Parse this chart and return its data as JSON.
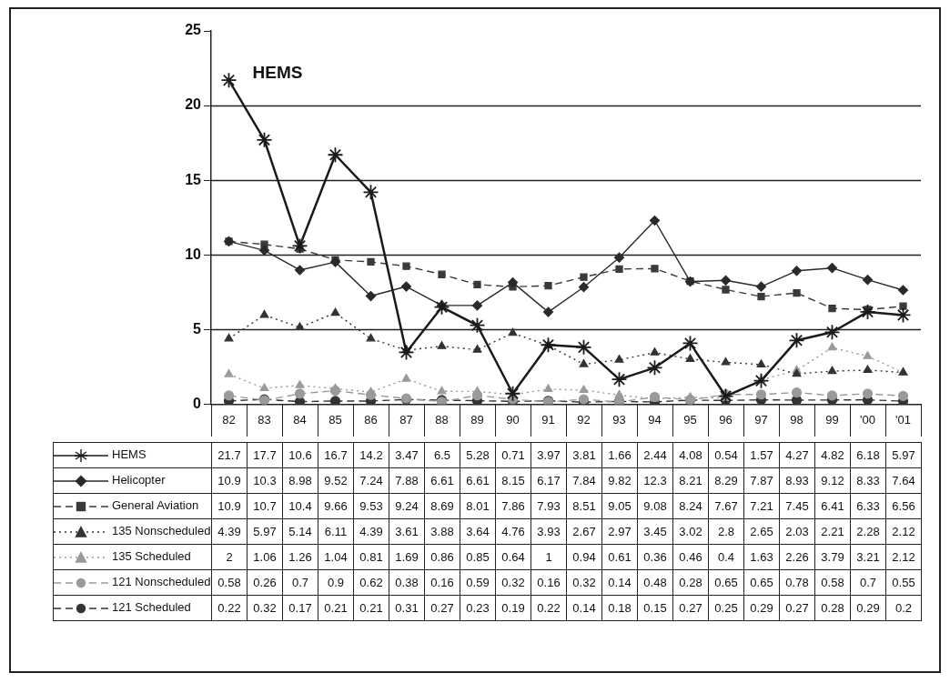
{
  "chart_data": {
    "type": "line",
    "categories": [
      "82",
      "83",
      "84",
      "85",
      "86",
      "87",
      "88",
      "89",
      "90",
      "91",
      "92",
      "93",
      "94",
      "95",
      "96",
      "97",
      "98",
      "99",
      "'00",
      "'01"
    ],
    "series": [
      {
        "name": "HEMS",
        "color": "#1a1a1a",
        "marker": "cross",
        "line_style": "solid",
        "values": [
          21.7,
          17.7,
          10.6,
          16.7,
          14.2,
          3.47,
          6.5,
          5.28,
          0.71,
          3.97,
          3.81,
          1.66,
          2.44,
          4.08,
          0.54,
          1.57,
          4.27,
          4.82,
          6.18,
          5.97
        ]
      },
      {
        "name": "Helicopter",
        "color": "#2a2a2a",
        "marker": "diamond",
        "line_style": "solid",
        "values": [
          10.9,
          10.3,
          8.98,
          9.52,
          7.24,
          7.88,
          6.61,
          6.61,
          8.15,
          6.17,
          7.84,
          9.82,
          12.3,
          8.21,
          8.29,
          7.87,
          8.93,
          9.12,
          8.33,
          7.64
        ]
      },
      {
        "name": "General Aviation",
        "color": "#3a3a3a",
        "marker": "square",
        "line_style": "dashed",
        "values": [
          10.9,
          10.7,
          10.4,
          9.66,
          9.53,
          9.24,
          8.69,
          8.01,
          7.86,
          7.93,
          8.51,
          9.05,
          9.08,
          8.24,
          7.67,
          7.21,
          7.45,
          6.41,
          6.33,
          6.56
        ]
      },
      {
        "name": "135 Nonscheduled",
        "color": "#333333",
        "marker": "triangle",
        "line_style": "dotted",
        "values": [
          4.39,
          5.97,
          5.14,
          6.11,
          4.39,
          3.61,
          3.88,
          3.64,
          4.76,
          3.93,
          2.67,
          2.97,
          3.45,
          3.02,
          2.8,
          2.65,
          2.03,
          2.21,
          2.28,
          2.12
        ]
      },
      {
        "name": "135 Scheduled",
        "color": "#9a9a9a",
        "marker": "triangle",
        "line_style": "dotted",
        "values": [
          2,
          1.06,
          1.26,
          1.04,
          0.81,
          1.69,
          0.86,
          0.85,
          0.64,
          1,
          0.94,
          0.61,
          0.36,
          0.46,
          0.4,
          1.63,
          2.26,
          3.79,
          3.21,
          2.12
        ]
      },
      {
        "name": "121 Nonscheduled",
        "color": "#9a9a9a",
        "marker": "circle",
        "line_style": "dashed",
        "values": [
          0.58,
          0.26,
          0.7,
          0.9,
          0.62,
          0.38,
          0.16,
          0.59,
          0.32,
          0.16,
          0.32,
          0.14,
          0.48,
          0.28,
          0.65,
          0.65,
          0.78,
          0.58,
          0.7,
          0.55
        ]
      },
      {
        "name": "121 Scheduled",
        "color": "#333333",
        "marker": "circle",
        "line_style": "dashed",
        "values": [
          0.22,
          0.32,
          0.17,
          0.21,
          0.21,
          0.31,
          0.27,
          0.23,
          0.19,
          0.22,
          0.14,
          0.18,
          0.15,
          0.27,
          0.25,
          0.29,
          0.27,
          0.28,
          0.29,
          0.2
        ]
      }
    ],
    "ylim": [
      0,
      25
    ],
    "yticks": [
      0,
      5,
      10,
      15,
      20,
      25
    ],
    "grid": "y",
    "legend": "bottom",
    "data_labels": true,
    "annotations": [
      {
        "text": "HEMS",
        "x": "82",
        "y": 21.7
      }
    ]
  }
}
